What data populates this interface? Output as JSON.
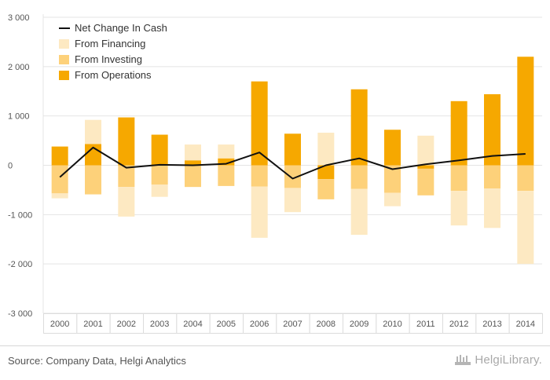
{
  "chart_data": {
    "type": "bar",
    "stacked": true,
    "categories": [
      "2000",
      "2001",
      "2002",
      "2003",
      "2004",
      "2005",
      "2006",
      "2007",
      "2008",
      "2009",
      "2010",
      "2011",
      "2012",
      "2013",
      "2014"
    ],
    "ylim": [
      -3000,
      3000
    ],
    "yticks": [
      3000,
      2000,
      1000,
      0,
      -1000,
      -2000,
      -3000
    ],
    "ytick_labels": [
      "3 000",
      "2 000",
      "1 000",
      "0",
      "-1 000",
      "-2 000",
      "-3 000"
    ],
    "grid": true,
    "legend_position": "top-left",
    "series": [
      {
        "name": "From Operations",
        "kind": "bar",
        "color": "#f6a800",
        "values": [
          380,
          430,
          970,
          620,
          100,
          140,
          1700,
          640,
          -280,
          1540,
          720,
          -70,
          1300,
          1440,
          2200
        ]
      },
      {
        "name": "From Investing",
        "kind": "bar",
        "color": "#fdd17a",
        "values": [
          -570,
          -590,
          -440,
          -390,
          -440,
          -420,
          -430,
          -460,
          -410,
          -480,
          -560,
          -540,
          -520,
          -470,
          -520
        ]
      },
      {
        "name": "From Financing",
        "kind": "bar",
        "color": "#fde9c2",
        "values": [
          -100,
          490,
          -600,
          -250,
          320,
          280,
          -1040,
          -490,
          660,
          -930,
          -270,
          600,
          -700,
          -800,
          -1480
        ]
      },
      {
        "name": "Net Change In Cash",
        "kind": "line",
        "color": "#111111",
        "values": [
          -240,
          360,
          -50,
          10,
          0,
          30,
          260,
          -270,
          0,
          140,
          -80,
          20,
          100,
          190,
          230
        ]
      }
    ]
  },
  "footer": {
    "source": "Source: Company Data, Helgi Analytics",
    "brand": "HelgiLibrary."
  }
}
